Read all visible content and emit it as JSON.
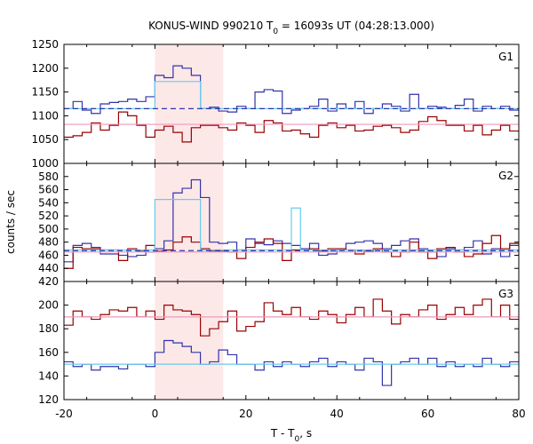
{
  "chart_data": {
    "type": "line",
    "title": {
      "prefix": "KONUS-WIND 990210 T",
      "sub": "0",
      "suffix": " = 16093s UT (04:28:13.000)"
    },
    "xlabel": {
      "prefix": "T - T",
      "sub": "0",
      "suffix": ", s"
    },
    "ylabel": "counts / sec",
    "xlim": [
      -20,
      80
    ],
    "x_ticks": [
      -20,
      0,
      20,
      40,
      60,
      80
    ],
    "highlight_interval": [
      0,
      15
    ],
    "colors": {
      "blue": "#3333aa",
      "red": "#990000",
      "cyan": "#66ccee",
      "pink": "#ee99bb",
      "highlight": "#fde8e8"
    },
    "bin_width": 2,
    "panels": [
      {
        "label": "G1",
        "ylim": [
          1000,
          1250
        ],
        "y_ticks": [
          1000,
          1050,
          1100,
          1150,
          1200,
          1250
        ],
        "series": [
          {
            "role": "blue",
            "x_start": -20,
            "values": [
              1115,
              1130,
              1112,
              1105,
              1125,
              1128,
              1130,
              1135,
              1130,
              1140,
              1185,
              1180,
              1205,
              1200,
              1185,
              1115,
              1118,
              1110,
              1108,
              1120,
              1115,
              1150,
              1155,
              1152,
              1105,
              1112,
              1115,
              1120,
              1135,
              1110,
              1125,
              1115,
              1130,
              1105,
              1115,
              1125,
              1120,
              1110,
              1145,
              1115,
              1120,
              1118,
              1115,
              1122,
              1135,
              1110,
              1120,
              1115,
              1120,
              1112
            ]
          },
          {
            "role": "red",
            "x_start": -20,
            "values": [
              1055,
              1058,
              1065,
              1085,
              1070,
              1080,
              1108,
              1100,
              1080,
              1055,
              1070,
              1078,
              1065,
              1045,
              1075,
              1080,
              1080,
              1075,
              1070,
              1085,
              1080,
              1065,
              1090,
              1085,
              1068,
              1070,
              1062,
              1055,
              1080,
              1085,
              1075,
              1080,
              1068,
              1070,
              1078,
              1080,
              1075,
              1065,
              1070,
              1088,
              1098,
              1090,
              1080,
              1080,
              1068,
              1080,
              1060,
              1070,
              1080,
              1068
            ]
          },
          {
            "role": "cyan",
            "x_start": -20,
            "values": [
              1115,
              1115,
              1115,
              1115,
              1115,
              1115,
              1115,
              1115,
              1115,
              1115,
              1172,
              1172,
              1172,
              1172,
              1172,
              1115,
              1115,
              1115,
              1115,
              1115,
              1115,
              1115,
              1115,
              1115,
              1115,
              1115,
              1115,
              1115,
              1115,
              1115,
              1115,
              1115,
              1115,
              1115,
              1115,
              1115,
              1115,
              1115,
              1115,
              1115,
              1115,
              1115,
              1115,
              1115,
              1115,
              1115,
              1115,
              1115,
              1115,
              1115
            ]
          }
        ],
        "reference_lines": [
          {
            "role": "blue",
            "y": 1115,
            "style": "dashed"
          },
          {
            "role": "pink",
            "y": 1082,
            "style": "solid"
          }
        ]
      },
      {
        "label": "G2",
        "ylim": [
          420,
          600
        ],
        "y_ticks": [
          420,
          440,
          460,
          480,
          500,
          520,
          540,
          560,
          580
        ],
        "series": [
          {
            "role": "blue",
            "x_start": -20,
            "values": [
              450,
              475,
              478,
              472,
              462,
              462,
              460,
              458,
              460,
              465,
              470,
              482,
              555,
              562,
              575,
              548,
              480,
              478,
              480,
              468,
              485,
              478,
              476,
              482,
              478,
              475,
              470,
              478,
              460,
              462,
              468,
              478,
              480,
              482,
              478,
              470,
              475,
              482,
              485,
              470,
              465,
              458,
              470,
              468,
              472,
              482,
              462,
              470,
              458,
              475
            ]
          },
          {
            "role": "red",
            "x_start": -20,
            "values": [
              440,
              472,
              470,
              470,
              468,
              468,
              452,
              470,
              466,
              475,
              466,
              468,
              480,
              488,
              480,
              470,
              466,
              466,
              465,
              455,
              472,
              480,
              485,
              478,
              452,
              468,
              468,
              470,
              466,
              470,
              470,
              468,
              462,
              466,
              470,
              465,
              458,
              465,
              480,
              465,
              455,
              470,
              472,
              465,
              458,
              462,
              478,
              490,
              470,
              478
            ]
          },
          {
            "role": "cyan",
            "x_start": -20,
            "values": [
              468,
              468,
              468,
              468,
              468,
              468,
              468,
              468,
              468,
              468,
              545,
              545,
              545,
              545,
              545,
              468,
              468,
              468,
              468,
              468,
              468,
              468,
              468,
              468,
              468,
              532,
              468,
              468,
              468,
              468,
              468,
              468,
              468,
              468,
              468,
              468,
              468,
              468,
              468,
              468,
              468,
              468,
              468,
              468,
              468,
              468,
              468,
              468,
              468,
              468
            ]
          }
        ],
        "reference_lines": [
          {
            "role": "blue",
            "y": 467,
            "style": "dashed"
          },
          {
            "role": "pink",
            "y": 465,
            "style": "solid"
          }
        ]
      },
      {
        "label": "G3",
        "ylim": [
          120,
          220
        ],
        "y_ticks": [
          120,
          140,
          160,
          180,
          200
        ],
        "series": [
          {
            "role": "red",
            "x_start": -20,
            "values": [
              183,
              195,
              190,
              188,
              192,
              196,
              195,
              198,
              190,
              195,
              188,
              200,
              196,
              195,
              192,
              174,
              180,
              186,
              195,
              178,
              182,
              186,
              202,
              195,
              192,
              198,
              190,
              188,
              195,
              192,
              185,
              192,
              198,
              190,
              205,
              195,
              184,
              192,
              190,
              196,
              200,
              188,
              192,
              198,
              192,
              200,
              205,
              190,
              200,
              188
            ]
          },
          {
            "role": "blue",
            "x_start": -20,
            "values": [
              152,
              148,
              150,
              145,
              148,
              148,
              146,
              150,
              150,
              148,
              160,
              170,
              168,
              165,
              160,
              150,
              152,
              162,
              158,
              150,
              150,
              145,
              152,
              148,
              152,
              150,
              148,
              152,
              155,
              148,
              152,
              150,
              145,
              155,
              152,
              132,
              150,
              152,
              155,
              150,
              155,
              148,
              152,
              148,
              150,
              148,
              155,
              150,
              148,
              152
            ]
          },
          {
            "role": "pink",
            "x_start": -20,
            "values": [
              190,
              190,
              190,
              190,
              190,
              190,
              190,
              190,
              190,
              190,
              190,
              190,
              190,
              190,
              190,
              190,
              190,
              190,
              190,
              190,
              190,
              190,
              190,
              190,
              190,
              190,
              190,
              190,
              190,
              190,
              190,
              190,
              190,
              190,
              190,
              190,
              190,
              190,
              190,
              190,
              190,
              190,
              190,
              190,
              190,
              190,
              190,
              190,
              190,
              190
            ]
          },
          {
            "role": "cyan",
            "x_start": -20,
            "values": [
              150,
              150,
              150,
              150,
              150,
              150,
              150,
              150,
              150,
              150,
              150,
              150,
              150,
              150,
              150,
              150,
              150,
              150,
              150,
              150,
              150,
              150,
              150,
              150,
              150,
              150,
              150,
              150,
              150,
              150,
              150,
              150,
              150,
              150,
              150,
              150,
              150,
              150,
              150,
              150,
              150,
              150,
              150,
              150,
              150,
              150,
              150,
              150,
              150,
              150
            ]
          }
        ],
        "reference_lines": []
      }
    ]
  }
}
